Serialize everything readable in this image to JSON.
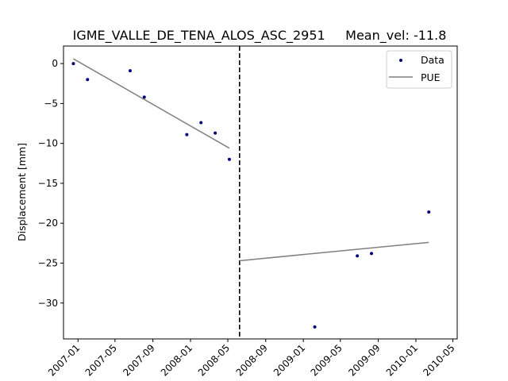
{
  "chart_data": {
    "type": "scatter",
    "title": "IGME_VALLE_DE_TENA_ALOS_ASC_2951     Mean_vel: -11.8",
    "xlabel": "",
    "ylabel": "Displacement [mm]",
    "x_axis_type": "date",
    "xlim": [
      "2006-11-15",
      "2010-05-15"
    ],
    "ylim": [
      -34.5,
      2.2
    ],
    "x_ticks": [
      "2007-01-01",
      "2007-05-01",
      "2007-09-01",
      "2008-01-01",
      "2008-05-01",
      "2008-09-01",
      "2009-01-01",
      "2009-05-01",
      "2009-09-01",
      "2010-01-01",
      "2010-05-01"
    ],
    "x_tick_labels": [
      "2007-01",
      "2007-05",
      "2007-09",
      "2008-01",
      "2008-05",
      "2008-09",
      "2009-01",
      "2009-05",
      "2009-09",
      "2010-01",
      "2010-05"
    ],
    "y_ticks": [
      0,
      -5,
      -10,
      -15,
      -20,
      -25,
      -30
    ],
    "y_tick_labels": [
      "0",
      "−5",
      "−10",
      "−15",
      "−20",
      "−25",
      "−30"
    ],
    "series": [
      {
        "name": "Data",
        "kind": "scatter",
        "color": "#00007f",
        "points": [
          {
            "x": "2006-12-17",
            "y": 0.0
          },
          {
            "x": "2007-02-01",
            "y": -2.0
          },
          {
            "x": "2007-06-19",
            "y": -0.9
          },
          {
            "x": "2007-08-04",
            "y": -4.2
          },
          {
            "x": "2007-12-20",
            "y": -8.9
          },
          {
            "x": "2008-02-04",
            "y": -7.4
          },
          {
            "x": "2008-03-21",
            "y": -8.7
          },
          {
            "x": "2008-05-06",
            "y": -12.0
          },
          {
            "x": "2009-02-07",
            "y": -33.0
          },
          {
            "x": "2009-06-25",
            "y": -24.1
          },
          {
            "x": "2009-08-10",
            "y": -23.8
          },
          {
            "x": "2010-02-12",
            "y": -18.6
          }
        ]
      },
      {
        "name": "PUE",
        "kind": "line",
        "color": "#808080",
        "segments": [
          [
            {
              "x": "2006-12-17",
              "y": 0.6
            },
            {
              "x": "2008-05-06",
              "y": -10.6
            }
          ],
          [
            {
              "x": "2008-06-08",
              "y": -24.7
            },
            {
              "x": "2010-02-12",
              "y": -22.4
            }
          ]
        ]
      }
    ],
    "vline": {
      "x": "2008-06-08",
      "style": "dashed",
      "color": "#000000"
    },
    "legend": {
      "position": "top-right",
      "entries": [
        "Data",
        "PUE"
      ]
    },
    "grid": false
  }
}
